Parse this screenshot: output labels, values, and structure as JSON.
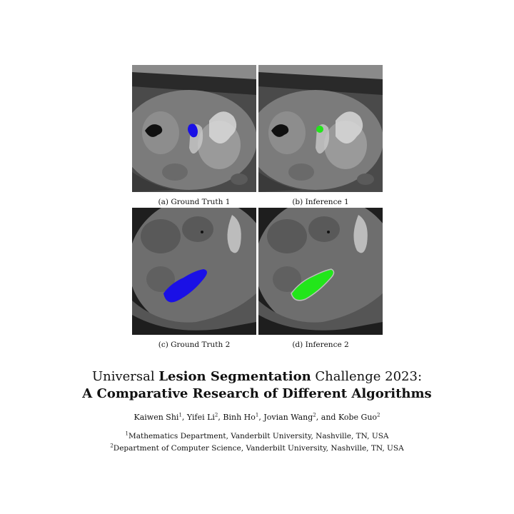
{
  "figure": {
    "captions": {
      "a": "(a) Ground Truth 1",
      "b": "(b) Inference 1",
      "c": "(c) Ground Truth 2",
      "d": "(d) Inference 2"
    },
    "colors": {
      "ground_truth_mask": "#1a10e6",
      "inference_mask": "#22e61a",
      "ct_background": "#4a4a4a"
    }
  },
  "paper": {
    "title_line1_part1": "Universal ",
    "title_line1_bold1": "Lesion Segmentation",
    "title_line1_part2": " Challenge 2023:",
    "title_line2": "A Comparative Research of Different Algorithms",
    "authors": [
      {
        "name": "Kaiwen Shi",
        "sup": "1",
        "sep": ", "
      },
      {
        "name": "Yifei Li",
        "sup": "2",
        "sep": ", "
      },
      {
        "name": "Binh Ho",
        "sup": "1",
        "sep": ", "
      },
      {
        "name": "Jovian Wang",
        "sup": "2",
        "sep": ", and "
      },
      {
        "name": "Kobe Guo",
        "sup": "2",
        "sep": ""
      }
    ],
    "affiliations": [
      {
        "sup": "1",
        "text": "Mathematics Department, Vanderbilt University, Nashville, TN, USA"
      },
      {
        "sup": "2",
        "text": "Department of Computer Science, Vanderbilt University, Nashville, TN, USA"
      }
    ]
  }
}
